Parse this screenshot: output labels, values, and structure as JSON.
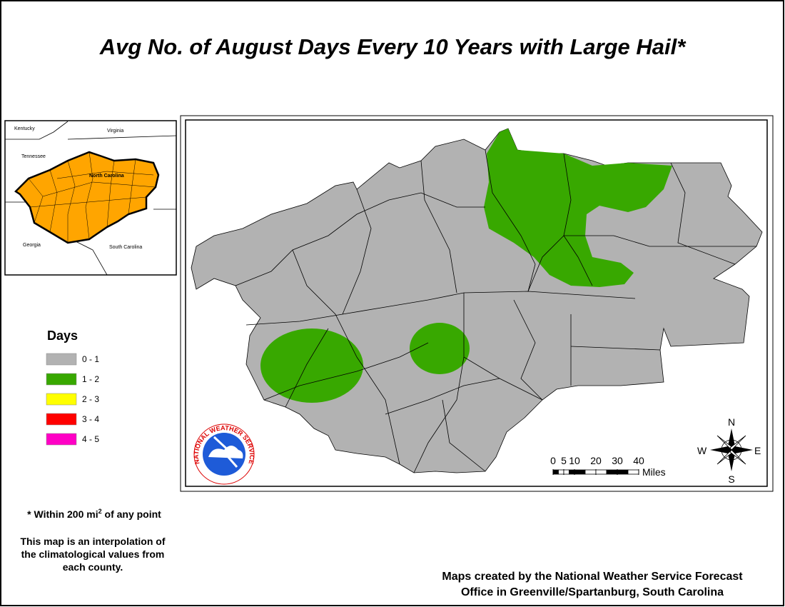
{
  "title": "Avg No. of August Days Every 10 Years with Large Hail*",
  "inset": {
    "labels": [
      "Kentucky",
      "Virginia",
      "Tennessee",
      "North Carolina",
      "Georgia",
      "South Carolina"
    ],
    "highlight_color": "#ffa500"
  },
  "legend": {
    "title": "Days",
    "items": [
      {
        "label": "0 - 1",
        "color": "#b2b2b2"
      },
      {
        "label": "1 - 2",
        "color": "#38a800"
      },
      {
        "label": "2 - 3",
        "color": "#ffff00"
      },
      {
        "label": "3 - 4",
        "color": "#ff0000"
      },
      {
        "label": "4 - 5",
        "color": "#ff00c5"
      }
    ]
  },
  "notes": {
    "footnote": {
      "text": "* Within 200 mi",
      "superscript": "2",
      "suffix": " of any point"
    },
    "interpolation": [
      "This map is an interpolation of",
      "the climatological values from",
      "each county."
    ]
  },
  "credit": [
    "Maps created by the National Weather Service Forecast",
    "Office in Greenville/Spartanburg, South Carolina"
  ],
  "scale": {
    "ticks": [
      0,
      5,
      10,
      20,
      30,
      40
    ],
    "unit": "Miles"
  },
  "compass": {
    "n": "N",
    "s": "S",
    "e": "E",
    "w": "W"
  },
  "logo": {
    "text": "NATIONAL WEATHER SERVICE"
  }
}
